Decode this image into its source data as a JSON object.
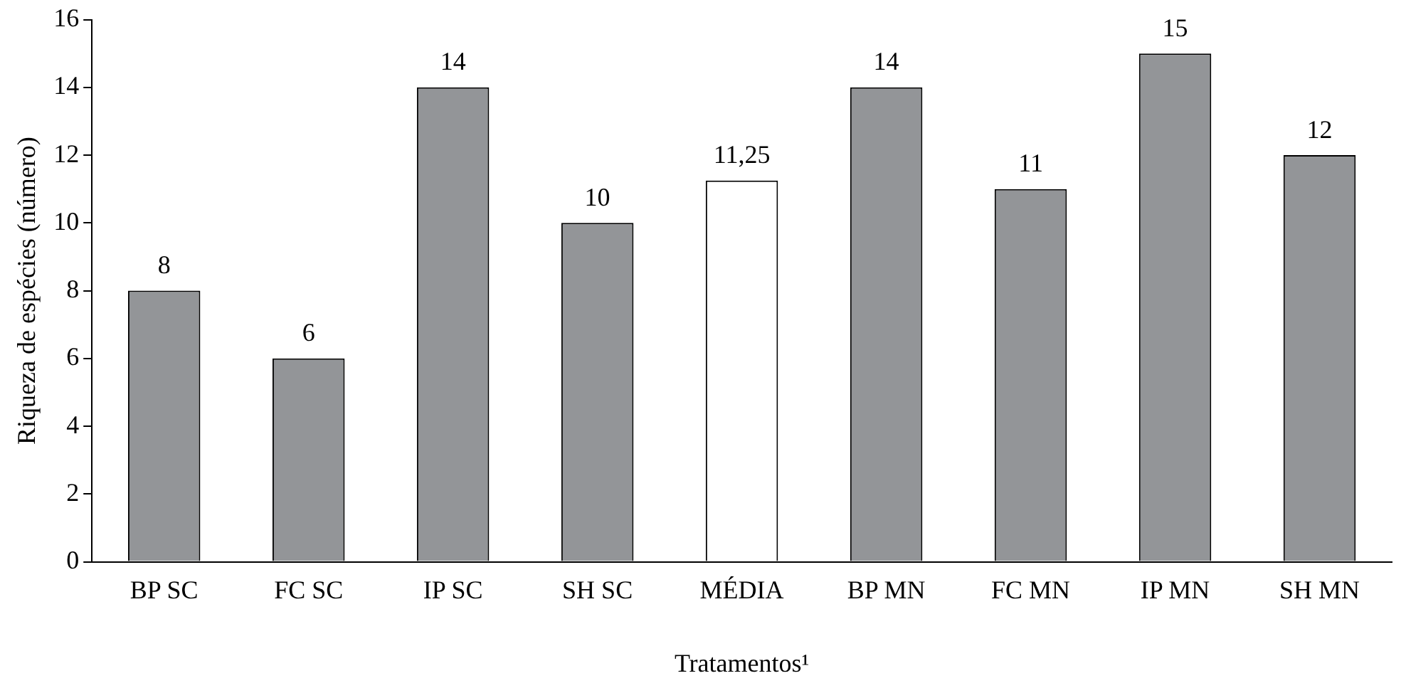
{
  "chart_data": {
    "type": "bar",
    "xlabel": "Tratamentos¹",
    "ylabel": "Riqueza de espécies (número)",
    "categories": [
      "BP SC",
      "FC SC",
      "IP SC",
      "SH SC",
      "MÉDIA",
      "BP MN",
      "FC MN",
      "IP MN",
      "SH MN"
    ],
    "values": [
      8,
      6,
      14,
      10,
      11.25,
      14,
      11,
      15,
      12
    ],
    "value_labels": [
      "8",
      "6",
      "14",
      "10",
      "11,25",
      "14",
      "11",
      "15",
      "12"
    ],
    "colors": [
      "#939598",
      "#939598",
      "#939598",
      "#939598",
      "#ffffff",
      "#939598",
      "#939598",
      "#939598",
      "#939598"
    ],
    "ylim": [
      0,
      16
    ],
    "yticks": [
      0,
      2,
      4,
      6,
      8,
      10,
      12,
      14,
      16
    ],
    "grid": false,
    "legend": false
  }
}
